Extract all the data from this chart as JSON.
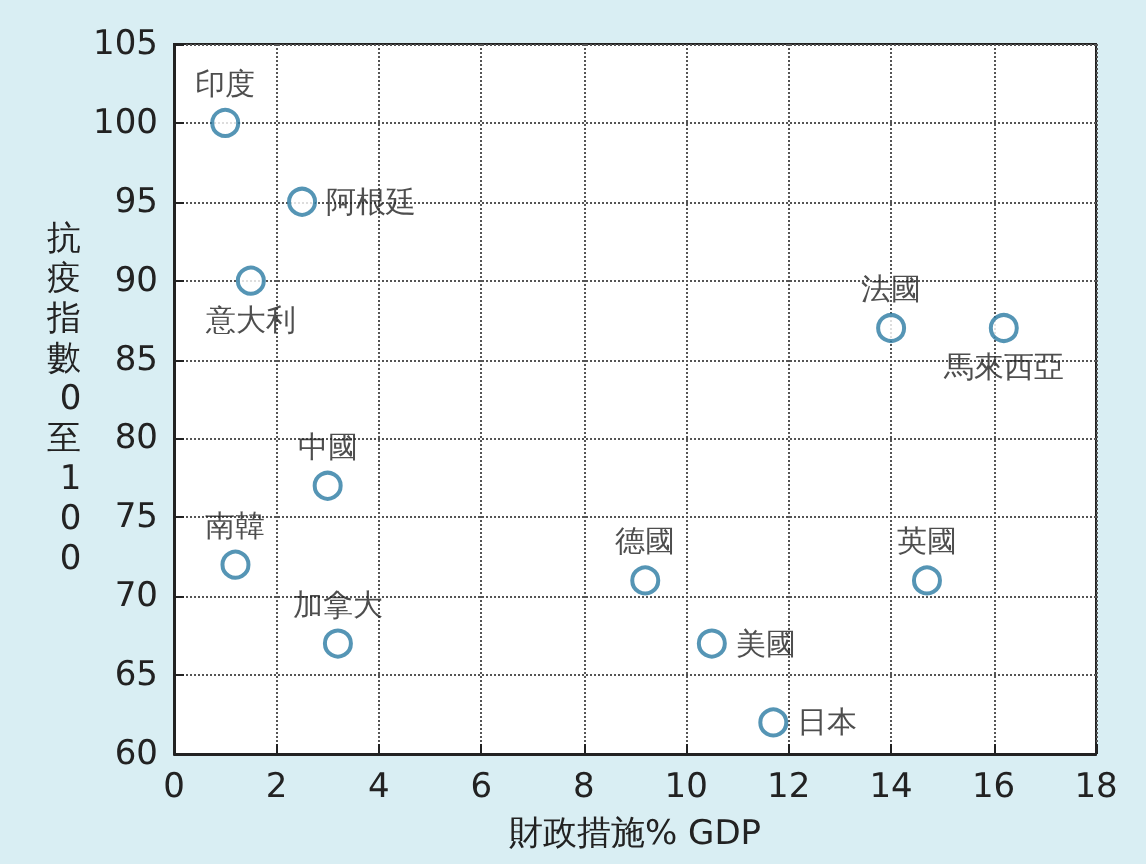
{
  "chart_data": {
    "type": "scatter",
    "xlabel": "財政措施% GDP",
    "ylabel": "抗疫指數0至100",
    "x": [
      1.0,
      2.5,
      1.5,
      3.0,
      1.2,
      3.2,
      9.2,
      10.5,
      11.7,
      14.0,
      16.2,
      14.7
    ],
    "series": [
      {
        "color": "#2b7ba3",
        "values": [
          100,
          95,
          90,
          77,
          72,
          67,
          71,
          67,
          62,
          87,
          87,
          71
        ]
      }
    ],
    "annotations": [
      {
        "text": "印度",
        "x": 1.0,
        "y": 100
      },
      {
        "text": "阿根廷",
        "x": 2.5,
        "y": 95
      },
      {
        "text": "意大利",
        "x": 1.5,
        "y": 90
      },
      {
        "text": "中國",
        "x": 3.0,
        "y": 77
      },
      {
        "text": "南韓",
        "x": 1.2,
        "y": 72
      },
      {
        "text": "加拿大",
        "x": 3.2,
        "y": 67
      },
      {
        "text": "德國",
        "x": 9.2,
        "y": 71
      },
      {
        "text": "美國",
        "x": 10.5,
        "y": 67
      },
      {
        "text": "日本",
        "x": 11.7,
        "y": 62
      },
      {
        "text": "法國",
        "x": 14.0,
        "y": 87
      },
      {
        "text": "馬來西亞",
        "x": 16.2,
        "y": 87
      },
      {
        "text": "英國",
        "x": 14.7,
        "y": 71
      }
    ],
    "xlim": [
      0,
      18
    ],
    "xticks": [
      0,
      2,
      4,
      6,
      8,
      10,
      12,
      14,
      16,
      18
    ],
    "ylim": [
      60,
      105
    ],
    "yticks": [
      60,
      65,
      70,
      75,
      80,
      85,
      90,
      95,
      100,
      105
    ],
    "grid": true,
    "marker": "circle"
  }
}
